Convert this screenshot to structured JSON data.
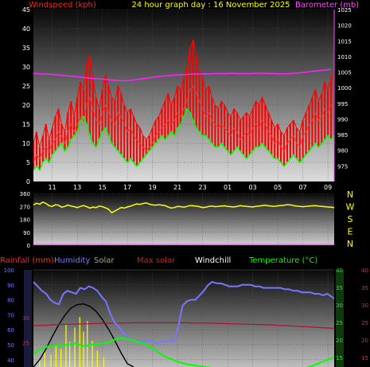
{
  "header": {
    "date_title": "24 hour graph day : 16 November 2025"
  },
  "colors": {
    "background": "#000000",
    "wind": "#ff0000",
    "gust": "#ff0000",
    "windavg": "#00ff00",
    "baro": "#ff22ff",
    "dir": "#ffff00",
    "rain_label": "#ff0000",
    "humidity": "#7777ff",
    "solar_label": "#aaaa66",
    "maxsolar_label": "#cc2222",
    "windchill_label": "#ffffff",
    "temp": "#00ff00",
    "grid": "#555555",
    "tick_text": "#ffffff",
    "left_axis_red": "#ff2222",
    "right_axis_magenta": "#ff44ff"
  },
  "chart_data": [
    {
      "type": "line",
      "title": "",
      "left_axis_label": "Windspeed (kph)",
      "right_axis_label": "Barometer (mb)",
      "x_ticks": [
        "11",
        "13",
        "15",
        "17",
        "19",
        "21",
        "23",
        "01",
        "03",
        "05",
        "07",
        "09"
      ],
      "ylim": [
        0,
        45
      ],
      "y_ticks": [
        0,
        5,
        10,
        15,
        20,
        25,
        30,
        35,
        40,
        45
      ],
      "y2lim": [
        970,
        1025
      ],
      "y2_ticks": [
        975,
        980,
        985,
        990,
        995,
        1000,
        1005,
        1010,
        1015,
        1020,
        1025
      ],
      "series": [
        {
          "kind": "gust",
          "values": [
            10,
            13,
            9,
            12,
            15,
            11,
            14,
            17,
            19,
            15,
            13,
            18,
            21,
            17,
            22,
            26,
            24,
            31,
            33,
            27,
            22,
            19,
            24,
            28,
            25,
            22,
            21,
            25,
            23,
            20,
            18,
            19,
            17,
            15,
            14,
            12,
            11,
            12,
            14,
            16,
            17,
            19,
            21,
            23,
            20,
            22,
            25,
            24,
            27,
            30,
            35,
            37,
            33,
            29,
            27,
            24,
            25,
            22,
            20,
            19,
            21,
            20,
            18,
            17,
            19,
            18,
            16,
            17,
            18,
            17,
            19,
            21,
            20,
            22,
            20,
            18,
            16,
            14,
            15,
            13,
            12,
            14,
            15,
            16,
            14,
            13,
            16,
            18,
            20,
            22,
            24,
            21,
            23,
            26,
            24,
            27,
            29,
            31,
            30
          ],
          "x_start": 9.5,
          "x_step": 0.25
        },
        {
          "kind": "wind",
          "values": [
            5,
            7,
            6,
            8,
            9,
            8,
            10,
            11,
            13,
            12,
            10,
            13,
            15,
            13,
            15,
            17,
            16,
            20,
            22,
            19,
            16,
            15,
            18,
            20,
            18,
            16,
            15,
            18,
            17,
            15,
            13,
            14,
            12,
            11,
            10,
            9,
            8,
            9,
            10,
            12,
            13,
            14,
            15,
            16,
            15,
            16,
            18,
            17,
            19,
            21,
            24,
            25,
            23,
            21,
            19,
            17,
            18,
            16,
            15,
            14,
            15,
            14,
            13,
            12,
            14,
            13,
            11,
            12,
            13,
            12,
            14,
            15,
            14,
            16,
            15,
            13,
            12,
            10,
            11,
            9,
            8,
            10,
            11,
            12,
            10,
            9,
            12,
            13,
            15,
            16,
            18,
            16,
            17,
            19,
            18,
            20,
            21,
            22,
            22
          ],
          "x_start": 9.5,
          "x_step": 0.25
        },
        {
          "kind": "windavg",
          "values": [
            3,
            4,
            3,
            5,
            6,
            5,
            7,
            8,
            9,
            10,
            8,
            9,
            11,
            12,
            13,
            16,
            17,
            15,
            12,
            10,
            9,
            11,
            13,
            14,
            12,
            10,
            9,
            8,
            7,
            6,
            5,
            6,
            5,
            4,
            5,
            6,
            7,
            8,
            9,
            10,
            11,
            12,
            11,
            12,
            13,
            12,
            14,
            15,
            17,
            19,
            18,
            16,
            14,
            13,
            12,
            12,
            11,
            10,
            9,
            9,
            10,
            9,
            8,
            7,
            8,
            9,
            8,
            7,
            6,
            7,
            8,
            9,
            9,
            10,
            9,
            8,
            7,
            6,
            6,
            5,
            4,
            5,
            6,
            7,
            6,
            5,
            6,
            7,
            8,
            9,
            10,
            9,
            10,
            11,
            12,
            11,
            12,
            13,
            12
          ],
          "x_start": 9.5,
          "x_step": 0.25
        },
        {
          "kind": "baro",
          "values": [
            1004.6,
            1004.4,
            1004.3,
            1004.1,
            1003.8,
            1003.6,
            1003.3,
            1003.0,
            1002.8,
            1002.6,
            1002.3,
            1002.2,
            1002.4,
            1002.8,
            1003.2,
            1003.5,
            1003.8,
            1004.0,
            1004.2,
            1004.3,
            1004.4,
            1004.4,
            1004.5,
            1004.5,
            1004.6,
            1004.5,
            1004.5,
            1004.6,
            1004.6,
            1004.5,
            1004.4,
            1004.5,
            1004.7,
            1005.0,
            1005.3,
            1005.6,
            1005.9
          ],
          "x_start": 9.5,
          "x_step": 0.66
        }
      ]
    },
    {
      "type": "line",
      "title": "",
      "x_ticks": [
        "11",
        "13",
        "15",
        "17",
        "19",
        "21",
        "23",
        "01",
        "03",
        "05",
        "07",
        "09"
      ],
      "ylim": [
        0,
        360
      ],
      "y_ticks": [
        0,
        90,
        180,
        270,
        360
      ],
      "compass": [
        "N",
        "W",
        "S",
        "E",
        "N"
      ],
      "series": [
        {
          "kind": "direction",
          "values": [
            280,
            292,
            285,
            300,
            290,
            275,
            270,
            282,
            278,
            265,
            270,
            280,
            272,
            268,
            262,
            270,
            276,
            268,
            258,
            265,
            262,
            272,
            268,
            260,
            250,
            226,
            238,
            250,
            262,
            258,
            266,
            272,
            280,
            287,
            284,
            290,
            294,
            286,
            280,
            278,
            282,
            279,
            276,
            266,
            258,
            262,
            270,
            268,
            265,
            270,
            276,
            274,
            272,
            268,
            262,
            264,
            270,
            272,
            268,
            270,
            272,
            274,
            270,
            268,
            266,
            270,
            275,
            272,
            270,
            268,
            266,
            270,
            272,
            276,
            278,
            274,
            272,
            270,
            274,
            276,
            278,
            282,
            280,
            276,
            272,
            270,
            268,
            270,
            272,
            274,
            276,
            272,
            270,
            268,
            266,
            264,
            262,
            260,
            258
          ],
          "x_start": 9.5,
          "x_step": 0.25
        }
      ]
    },
    {
      "type": "line",
      "title": "",
      "labels": {
        "rain": "Rainfall (mm)",
        "humidity": "Humidity",
        "solar": "Solar",
        "maxsolar": "Max solar",
        "windchill": "Windchill",
        "temp": "Temperature (°C)"
      },
      "left_ticks": [
        40,
        50,
        60,
        70,
        80,
        90,
        100
      ],
      "left_ylim": [
        40,
        100
      ],
      "rain_ticks": [
        15,
        20,
        25,
        30
      ],
      "rain_ylim": [
        12,
        30
      ],
      "right_ticks": [
        15,
        20,
        25,
        30,
        35,
        40
      ],
      "right_ylim": [
        12,
        40
      ],
      "series": [
        {
          "kind": "humidity",
          "values": [
            92,
            89,
            86,
            84,
            80,
            78,
            77,
            84,
            86,
            85,
            84,
            88,
            87,
            89,
            88,
            86,
            82,
            79,
            71,
            65,
            62,
            58,
            56,
            53,
            52,
            53,
            51,
            53,
            52,
            51,
            52,
            52,
            53,
            52,
            62,
            76,
            79,
            80,
            80,
            83,
            86,
            90,
            92,
            91,
            91,
            90,
            89,
            89,
            89,
            90,
            90,
            90,
            89,
            89,
            88,
            88,
            88,
            88,
            88,
            87,
            87,
            86,
            86,
            85,
            85,
            85,
            84,
            84,
            83,
            84,
            82,
            80,
            79
          ],
          "x_start": 9.5,
          "x_step": 0.34
        },
        {
          "kind": "temp",
          "values": [
            16.0,
            17.0,
            17.8,
            18.2,
            18.4,
            18.6,
            18.4,
            18.8,
            19.0,
            18.6,
            18.2,
            18.6,
            18.8,
            18.9,
            19.1,
            19.6,
            20.2,
            20.6,
            20.4,
            20.0,
            19.6,
            19.2,
            18.6,
            17.8,
            16.8,
            15.8,
            15.0,
            14.4,
            13.8,
            13.4,
            13.0,
            12.8,
            12.6,
            12.4,
            12.2,
            12.0,
            11.8,
            11.6,
            11.5,
            11.4,
            11.3,
            11.2,
            11.1,
            11.0,
            11.0,
            11.1,
            11.2,
            11.3,
            11.4,
            11.5,
            11.6,
            11.7,
            11.8,
            12.0,
            12.4,
            13.0,
            13.6,
            14.2,
            14.8,
            15.6,
            16.4
          ],
          "x_start": 9.5,
          "x_step": 0.41
        },
        {
          "kind": "solar_bars",
          "x": [
            10.0,
            10.4,
            10.9,
            11.3,
            11.7,
            12.1,
            12.4,
            12.8,
            13.2,
            13.5,
            13.8,
            14.2,
            14.6,
            15.1
          ],
          "values": [
            90,
            180,
            150,
            260,
            220,
            520,
            310,
            480,
            610,
            430,
            560,
            320,
            200,
            120
          ]
        },
        {
          "kind": "maxsolar",
          "values": [
            0,
            90,
            220,
            370,
            510,
            630,
            720,
            760,
            770,
            740,
            680,
            580,
            460,
            320,
            170,
            40,
            0
          ],
          "x_start": 9.5,
          "x_step": 0.5
        },
        {
          "kind": "windchill",
          "values": [
            24.1,
            24.2,
            24.4,
            24.5,
            24.6,
            24.7,
            24.8,
            24.8,
            24.9,
            24.9,
            24.9,
            24.9,
            24.9,
            24.8,
            24.8,
            24.7,
            24.6,
            24.5,
            24.4,
            24.3,
            24.1,
            23.9,
            23.7,
            23.5,
            23.3,
            23.1,
            22.9,
            22.7,
            22.5
          ],
          "x_start": 9.5,
          "x_step": 1.0
        }
      ]
    }
  ]
}
